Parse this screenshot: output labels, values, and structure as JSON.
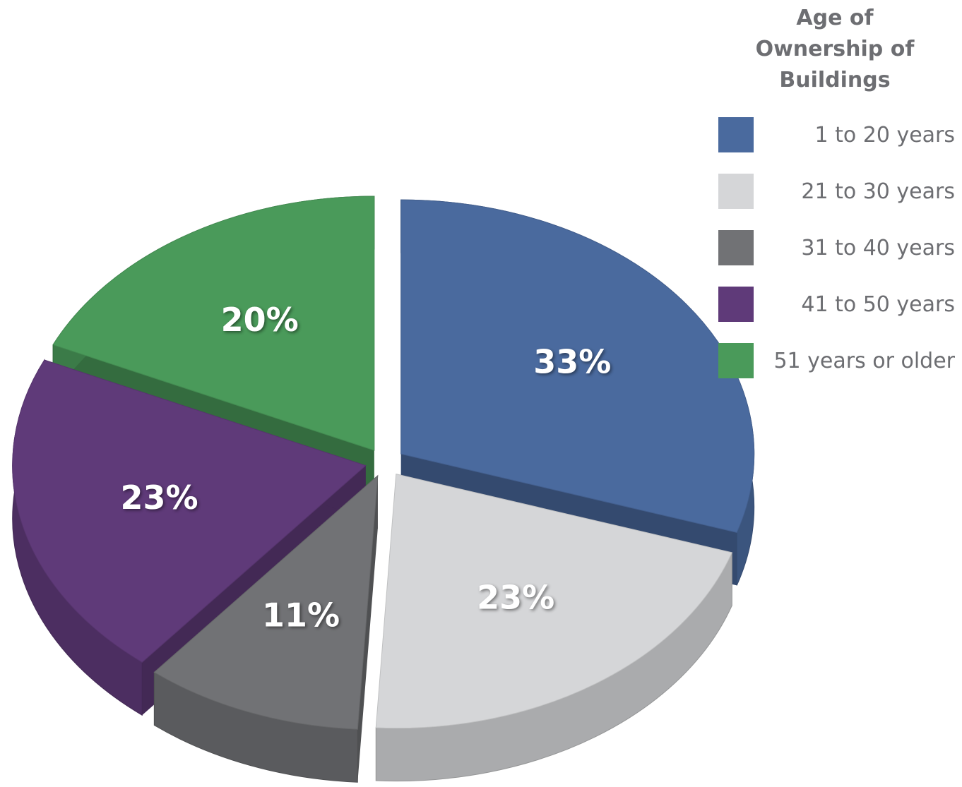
{
  "chart_data": {
    "type": "pie",
    "title": "Age of Ownership of Buildings",
    "categories": [
      "1 to 20 years",
      "21 to 30 years",
      "31 to 40 years",
      "41 to 50 years",
      "51 years or older"
    ],
    "values": [
      33,
      23,
      11,
      23,
      20
    ],
    "value_labels": [
      "33%",
      "23%",
      "11%",
      "23%",
      "20%"
    ],
    "colors": [
      "#4a6a9e",
      "#d5d6d8",
      "#717275",
      "#5f3a79",
      "#4a9a5a"
    ],
    "legend": "top-right"
  }
}
